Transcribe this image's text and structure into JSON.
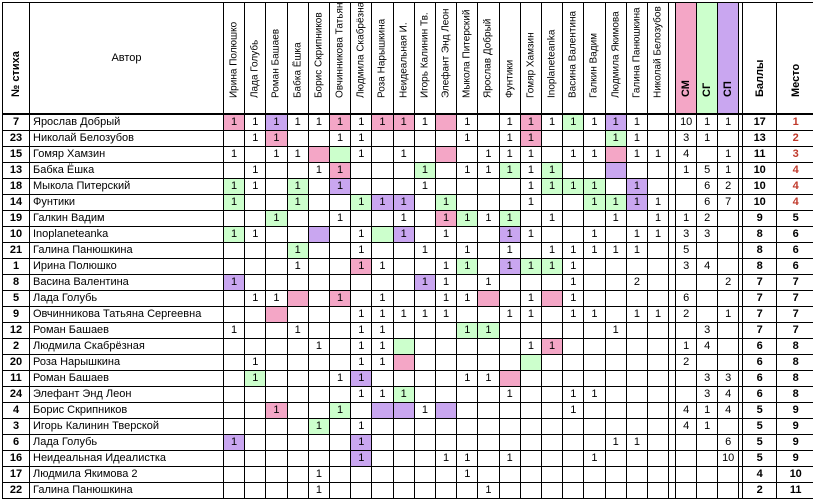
{
  "header": {
    "num_label": "№ стиха",
    "author_label": "Автор",
    "voters": [
      "Ирина Полюшко",
      "Лада Голубь",
      "Роман Башаев",
      "Бабка Ёшка",
      "Борис Скрипников",
      "Овчинникова Татьяна",
      "Людмила Скабрёзная",
      "Роза Нарышкина",
      "Неидеальная И.",
      "Игорь Калинин Тв.",
      "Элефант Энд Леон",
      "Мыкола Питерский",
      "Ярослав Добрый",
      "Фунтики",
      "Гомяр Хамзин",
      "Inoplaneteanka",
      "Васина Валентина",
      "Галкин Вадим",
      "Людмила Якимова",
      "Галина Панюшкина",
      "Николай Белозубов"
    ],
    "extras": [
      "СМ",
      "СГ",
      "СП"
    ],
    "total_label": "Баллы",
    "place_label": "Место"
  },
  "colors": {
    "pink": "#f4a6c6",
    "green": "#ccffcc",
    "purple": "#c9a6f0",
    "sm": "#f4a6c6",
    "sg": "#ccffcc",
    "sp": "#c9a6f0",
    "place": "#c0392b"
  },
  "rows": [
    {
      "num": "7",
      "author": "Ярослав Добрый",
      "votes": [
        "1",
        "1",
        "1",
        "1",
        "1",
        "1",
        "1",
        "1",
        "1",
        "1",
        "",
        "1",
        "",
        "1",
        "1",
        "1",
        "1",
        "1",
        "1",
        "1",
        ""
      ],
      "colors": [
        "pink",
        "",
        "purple",
        "",
        "",
        "pink",
        "",
        "pink",
        "pink",
        "",
        "pink",
        "",
        "",
        "",
        "pink",
        "",
        "green",
        "",
        "purple",
        "",
        ""
      ],
      "extras": [
        "10",
        "1",
        "1"
      ],
      "total": "17",
      "place": "1"
    },
    {
      "num": "23",
      "author": "Николай Белозубов",
      "votes": [
        "",
        "1",
        "1",
        "",
        "",
        "1",
        "1",
        "",
        "",
        "",
        "",
        "1",
        "",
        "1",
        "1",
        "",
        "",
        "",
        "1",
        "1",
        ""
      ],
      "colors": [
        "",
        "",
        "pink",
        "",
        "",
        "",
        "",
        "",
        "",
        "",
        "",
        "",
        "",
        "",
        "pink",
        "",
        "",
        "",
        "green",
        "",
        ""
      ],
      "extras": [
        "3",
        "1",
        ""
      ],
      "total": "13",
      "place": "2"
    },
    {
      "num": "15",
      "author": "Гомяр Хамзин",
      "votes": [
        "1",
        "",
        "1",
        "1",
        "",
        "",
        "1",
        "",
        "1",
        "",
        "",
        "",
        "1",
        "1",
        "1",
        "",
        "1",
        "1",
        "",
        "1",
        "1"
      ],
      "colors": [
        "",
        "",
        "",
        "",
        "pink",
        "green",
        "",
        "",
        "",
        "",
        "pink",
        "",
        "",
        "",
        "",
        "",
        "",
        "",
        "pink",
        "",
        ""
      ],
      "extras": [
        "4",
        "",
        "1"
      ],
      "total": "11",
      "place": "3"
    },
    {
      "num": "13",
      "author": "Бабка Ёшка",
      "votes": [
        "",
        "1",
        "",
        "",
        "1",
        "1",
        "",
        "",
        "",
        "1",
        "",
        "1",
        "1",
        "1",
        "1",
        "1",
        "",
        "",
        "",
        "",
        ""
      ],
      "colors": [
        "",
        "",
        "",
        "",
        "",
        "pink",
        "",
        "",
        "",
        "green",
        "",
        "",
        "",
        "green",
        "",
        "green",
        "",
        "",
        "purple",
        "",
        ""
      ],
      "extras": [
        "1",
        "5",
        "1"
      ],
      "total": "10",
      "place": "4"
    },
    {
      "num": "18",
      "author": "Мыкола Питерский",
      "votes": [
        "1",
        "1",
        "",
        "1",
        "",
        "1",
        "",
        "",
        "",
        "1",
        "",
        "",
        "",
        "",
        "1",
        "1",
        "1",
        "1",
        "",
        "1",
        ""
      ],
      "colors": [
        "green",
        "",
        "",
        "green",
        "",
        "purple",
        "",
        "",
        "",
        "",
        "",
        "",
        "",
        "",
        "",
        "green",
        "green",
        "green",
        "",
        "purple",
        ""
      ],
      "extras": [
        "",
        "6",
        "2"
      ],
      "total": "10",
      "place": "4"
    },
    {
      "num": "14",
      "author": "Фунтики",
      "votes": [
        "1",
        "",
        "",
        "1",
        "",
        "",
        "1",
        "1",
        "1",
        "",
        "1",
        "",
        "",
        "",
        "1",
        "",
        "",
        "1",
        "1",
        "1",
        "1"
      ],
      "colors": [
        "green",
        "",
        "",
        "green",
        "",
        "",
        "green",
        "purple",
        "purple",
        "",
        "green",
        "",
        "",
        "",
        "",
        "",
        "",
        "green",
        "green",
        "purple",
        ""
      ],
      "extras": [
        "",
        "6",
        "7"
      ],
      "total": "10",
      "place": "4"
    },
    {
      "num": "19",
      "author": "Галкин Вадим",
      "votes": [
        "",
        "",
        "1",
        "",
        "",
        "1",
        "",
        "",
        "1",
        "",
        "1",
        "1",
        "1",
        "1",
        "",
        "1",
        "",
        "",
        "1",
        "",
        "1"
      ],
      "colors": [
        "",
        "",
        "green",
        "",
        "",
        "",
        "",
        "",
        "",
        "",
        "pink",
        "green",
        "",
        "green",
        "",
        "",
        "",
        "",
        "",
        "",
        ""
      ],
      "extras": [
        "1",
        "2",
        ""
      ],
      "total": "9",
      "place": "5"
    },
    {
      "num": "10",
      "author": "Inoplaneteanka",
      "votes": [
        "1",
        "1",
        "",
        "",
        "",
        "",
        "1",
        "",
        "1",
        "",
        "1",
        "",
        "",
        "1",
        "1",
        "",
        "",
        "1",
        "",
        "1",
        "1"
      ],
      "colors": [
        "green",
        "",
        "",
        "",
        "purple",
        "",
        "",
        "green",
        "purple",
        "",
        "",
        "",
        "",
        "purple",
        "",
        "",
        "",
        "",
        "",
        "",
        ""
      ],
      "extras": [
        "3",
        "3",
        ""
      ],
      "total": "8",
      "place": "6"
    },
    {
      "num": "21",
      "author": "Галина Панюшкина",
      "votes": [
        "",
        "",
        "",
        "1",
        "",
        "",
        "1",
        "",
        "",
        "1",
        "",
        "1",
        "",
        "1",
        "",
        "1",
        "1",
        "1",
        "1",
        "1",
        ""
      ],
      "colors": [
        "",
        "",
        "",
        "green",
        "",
        "",
        "",
        "",
        "",
        "",
        "",
        "",
        "",
        "",
        "",
        "",
        "",
        "",
        "",
        "",
        ""
      ],
      "extras": [
        "5",
        "",
        ""
      ],
      "total": "8",
      "place": "6"
    },
    {
      "num": "1",
      "author": "Ирина Полюшко",
      "votes": [
        "",
        "",
        "",
        "1",
        "",
        "",
        "1",
        "1",
        "",
        "",
        "1",
        "1",
        "",
        "1",
        "1",
        "1",
        "1",
        "",
        "",
        "",
        ""
      ],
      "colors": [
        "",
        "",
        "",
        "",
        "",
        "",
        "pink",
        "",
        "",
        "",
        "",
        "green",
        "",
        "purple",
        "green",
        "green",
        "",
        "",
        "",
        "",
        ""
      ],
      "extras": [
        "3",
        "4",
        ""
      ],
      "total": "8",
      "place": "6"
    },
    {
      "num": "8",
      "author": "Васина Валентина",
      "votes": [
        "1",
        "",
        "",
        "",
        "",
        "",
        "",
        "",
        "",
        "1",
        "1",
        "",
        "1",
        "",
        "",
        "",
        "1",
        "",
        "",
        "2",
        ""
      ],
      "colors": [
        "purple",
        "",
        "",
        "",
        "",
        "",
        "",
        "",
        "",
        "purple",
        "",
        "",
        "",
        "",
        "",
        "",
        "",
        "",
        "",
        "",
        ""
      ],
      "extras": [
        "",
        "",
        "2"
      ],
      "total": "7",
      "place": "7"
    },
    {
      "num": "5",
      "author": "Лада Голубь",
      "votes": [
        "",
        "1",
        "1",
        "",
        "",
        "1",
        "",
        "1",
        "",
        "",
        "1",
        "1",
        "",
        "",
        "1",
        "",
        "1",
        "",
        "",
        "",
        ""
      ],
      "colors": [
        "",
        "",
        "",
        "pink",
        "",
        "pink",
        "",
        "",
        "",
        "",
        "",
        "",
        "pink",
        "",
        "",
        "pink",
        "",
        "",
        "",
        "",
        ""
      ],
      "extras": [
        "6",
        "",
        ""
      ],
      "total": "7",
      "place": "7"
    },
    {
      "num": "9",
      "author": "Овчинникова Татьяна Сергеевна",
      "votes": [
        "",
        "",
        "",
        "",
        "",
        "",
        "1",
        "1",
        "1",
        "1",
        "1",
        "",
        "",
        "1",
        "1",
        "",
        "1",
        "1",
        "",
        "1",
        "1"
      ],
      "colors": [
        "",
        "",
        "pink",
        "",
        "",
        "",
        "",
        "",
        "",
        "",
        "",
        "",
        "",
        "",
        "",
        "",
        "",
        "",
        "",
        "",
        ""
      ],
      "extras": [
        "2",
        "",
        "1"
      ],
      "total": "7",
      "place": "7"
    },
    {
      "num": "12",
      "author": "Роман Башаев",
      "votes": [
        "1",
        "",
        "",
        "1",
        "",
        "",
        "1",
        "1",
        "",
        "",
        "",
        "1",
        "1",
        "",
        "",
        "",
        "",
        "",
        "1",
        "",
        ""
      ],
      "colors": [
        "",
        "",
        "",
        "",
        "",
        "",
        "",
        "",
        "",
        "",
        "",
        "green",
        "green",
        "",
        "",
        "",
        "",
        "",
        "",
        "",
        ""
      ],
      "extras": [
        "",
        "3",
        ""
      ],
      "total": "7",
      "place": "7"
    },
    {
      "num": "2",
      "author": "Людмила Скабрёзная",
      "votes": [
        "",
        "",
        "",
        "",
        "1",
        "",
        "1",
        "1",
        "",
        "",
        "",
        "",
        "",
        "",
        "1",
        "1",
        "",
        "",
        "",
        "",
        ""
      ],
      "colors": [
        "",
        "",
        "",
        "",
        "",
        "",
        "",
        "",
        "green",
        "",
        "",
        "",
        "",
        "",
        "",
        "pink",
        "",
        "",
        "",
        "",
        ""
      ],
      "extras": [
        "1",
        "4",
        ""
      ],
      "total": "6",
      "place": "8"
    },
    {
      "num": "20",
      "author": "Роза Нарышкина",
      "votes": [
        "",
        "1",
        "",
        "",
        "",
        "",
        "1",
        "1",
        "",
        "",
        "",
        "",
        "",
        "",
        "",
        "",
        "",
        "",
        "",
        "",
        ""
      ],
      "colors": [
        "",
        "",
        "",
        "",
        "",
        "",
        "",
        "",
        "pink",
        "",
        "",
        "",
        "",
        "",
        "green",
        "",
        "",
        "",
        "",
        "",
        ""
      ],
      "extras": [
        "2",
        "",
        ""
      ],
      "total": "6",
      "place": "8"
    },
    {
      "num": "11",
      "author": "Роман Башаев",
      "votes": [
        "",
        "1",
        "",
        "",
        "",
        "1",
        "1",
        "",
        "",
        "",
        "",
        "1",
        "1",
        "",
        "",
        "",
        "",
        "",
        "",
        "",
        ""
      ],
      "colors": [
        "",
        "green",
        "",
        "",
        "",
        "",
        "purple",
        "",
        "",
        "",
        "",
        "",
        "",
        "pink",
        "",
        "",
        "",
        "",
        "",
        "",
        ""
      ],
      "extras": [
        "",
        "3",
        "3"
      ],
      "total": "6",
      "place": "8"
    },
    {
      "num": "24",
      "author": "Элефант Энд Леон",
      "votes": [
        "",
        "",
        "",
        "",
        "",
        "",
        "1",
        "1",
        "1",
        "",
        "",
        "",
        "",
        "1",
        "",
        "",
        "1",
        "1",
        "",
        "",
        ""
      ],
      "colors": [
        "",
        "",
        "",
        "",
        "",
        "",
        "",
        "",
        "green",
        "",
        "",
        "",
        "",
        "",
        "",
        "",
        "",
        "",
        "",
        "",
        ""
      ],
      "extras": [
        "",
        "3",
        "4"
      ],
      "total": "6",
      "place": "8"
    },
    {
      "num": "4",
      "author": "Борис Скрипников",
      "votes": [
        "",
        "",
        "1",
        "",
        "",
        "1",
        "",
        "",
        "",
        "1",
        "",
        "",
        "",
        "",
        "",
        "",
        "1",
        "",
        "",
        "",
        ""
      ],
      "colors": [
        "",
        "",
        "pink",
        "",
        "",
        "green",
        "",
        "purple",
        "purple",
        "",
        "purple",
        "",
        "",
        "",
        "",
        "",
        "",
        "",
        "",
        "",
        ""
      ],
      "extras": [
        "4",
        "1",
        "4"
      ],
      "total": "5",
      "place": "9"
    },
    {
      "num": "3",
      "author": "Игорь Калинин Тверской",
      "votes": [
        "",
        "",
        "",
        "",
        "1",
        "",
        "1",
        "",
        "",
        "",
        "",
        "",
        "",
        "",
        "",
        "",
        "",
        "",
        "",
        "",
        ""
      ],
      "colors": [
        "",
        "",
        "",
        "",
        "green",
        "",
        "",
        "",
        "",
        "",
        "",
        "",
        "",
        "",
        "",
        "",
        "",
        "",
        "",
        "",
        ""
      ],
      "extras": [
        "4",
        "1",
        ""
      ],
      "total": "5",
      "place": "9"
    },
    {
      "num": "6",
      "author": "Лада Голубь",
      "votes": [
        "1",
        "",
        "",
        "",
        "",
        "",
        "1",
        "",
        "",
        "",
        "",
        "",
        "",
        "",
        "",
        "",
        "",
        "",
        "1",
        "1",
        ""
      ],
      "colors": [
        "purple",
        "",
        "",
        "",
        "",
        "",
        "purple",
        "",
        "",
        "",
        "",
        "",
        "",
        "",
        "",
        "",
        "",
        "",
        "",
        "",
        ""
      ],
      "extras": [
        "",
        "",
        "6"
      ],
      "total": "5",
      "place": "9"
    },
    {
      "num": "16",
      "author": "Неидеальная Идеалистка",
      "votes": [
        "",
        "",
        "",
        "",
        "",
        "",
        "1",
        "",
        "",
        "",
        "1",
        "1",
        "",
        "1",
        "",
        "",
        "",
        "1",
        "",
        "",
        ""
      ],
      "colors": [
        "",
        "",
        "",
        "",
        "",
        "",
        "purple",
        "",
        "",
        "",
        "",
        "",
        "",
        "",
        "",
        "",
        "",
        "",
        "",
        "",
        ""
      ],
      "extras": [
        "",
        "",
        "10"
      ],
      "total": "5",
      "place": "9"
    },
    {
      "num": "17",
      "author": "Людмила Якимова 2",
      "votes": [
        "",
        "",
        "",
        "",
        "1",
        "",
        "",
        "",
        "",
        "",
        "",
        "1",
        "",
        "",
        "",
        "",
        "",
        "",
        "",
        "",
        ""
      ],
      "colors": [
        "",
        "",
        "",
        "",
        "",
        "",
        "",
        "",
        "",
        "",
        "",
        "",
        "",
        "",
        "",
        "",
        "",
        "",
        "",
        "",
        ""
      ],
      "extras": [
        "",
        "",
        ""
      ],
      "total": "4",
      "place": "10"
    },
    {
      "num": "22",
      "author": "Галина Панюшкина",
      "votes": [
        "",
        "",
        "",
        "",
        "1",
        "",
        "",
        "",
        "",
        "",
        "",
        "",
        "1",
        "",
        "",
        "",
        "",
        "",
        "",
        "",
        ""
      ],
      "colors": [
        "",
        "",
        "",
        "",
        "",
        "",
        "",
        "",
        "",
        "",
        "",
        "",
        "",
        "",
        "",
        "",
        "",
        "",
        "",
        "",
        ""
      ],
      "extras": [
        "",
        "",
        ""
      ],
      "total": "2",
      "place": "11"
    }
  ]
}
